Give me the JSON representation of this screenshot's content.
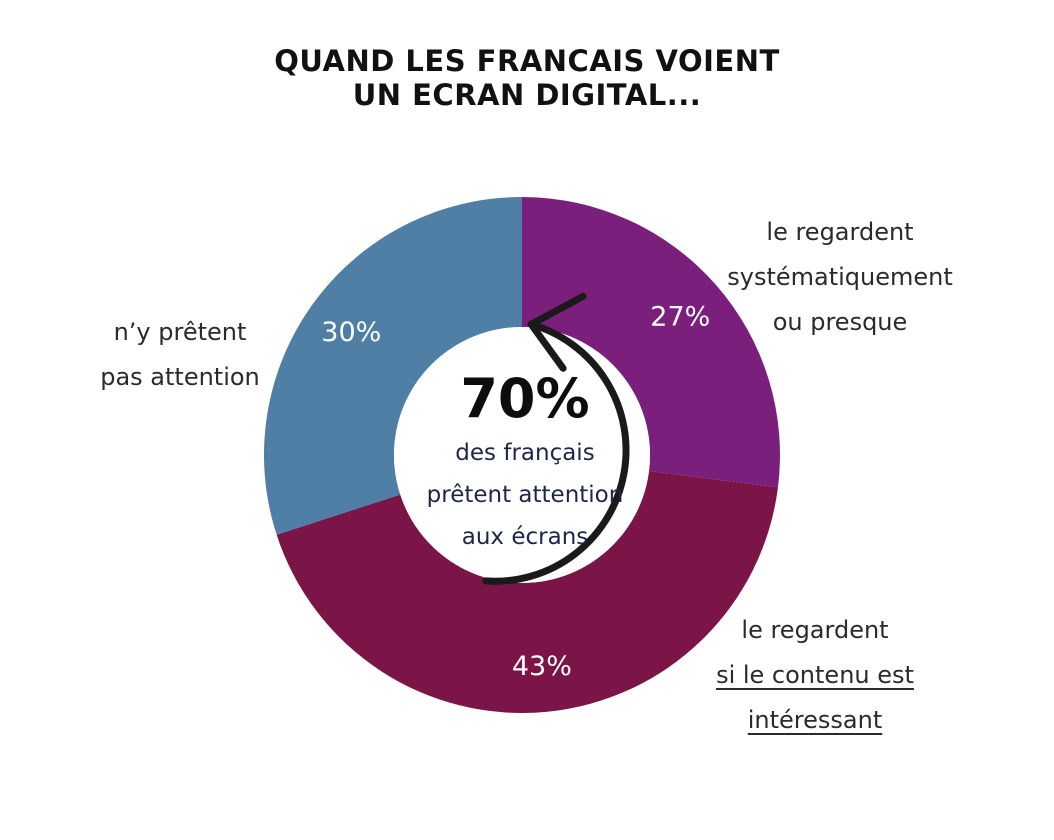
{
  "title": {
    "line1": "QUAND LES FRANCAIS VOIENT",
    "line2": "UN ECRAN DIGITAL..."
  },
  "center": {
    "value": "70%",
    "line1": "des français",
    "line2": "prêtent attention",
    "line3": "aux écrans"
  },
  "labels": {
    "left": [
      "n’y prêtent",
      "pas attention"
    ],
    "top_right": [
      "le regardent",
      "systématiquement",
      "ou presque"
    ],
    "bottom_right": [
      "le regardent",
      "si le contenu est",
      "intéressant"
    ]
  },
  "chart_data": {
    "type": "pie",
    "donut": true,
    "start": "top",
    "direction": "clockwise",
    "slices": [
      {
        "label_ref": "top_right",
        "value": 27,
        "display": "27%",
        "color": "#7b1f7d"
      },
      {
        "label_ref": "bottom_right",
        "value": 43,
        "display": "43%",
        "color": "#7b1447"
      },
      {
        "label_ref": "left",
        "value": 30,
        "display": "30%",
        "color": "#4f7fa4"
      }
    ],
    "center_arrow": true
  }
}
